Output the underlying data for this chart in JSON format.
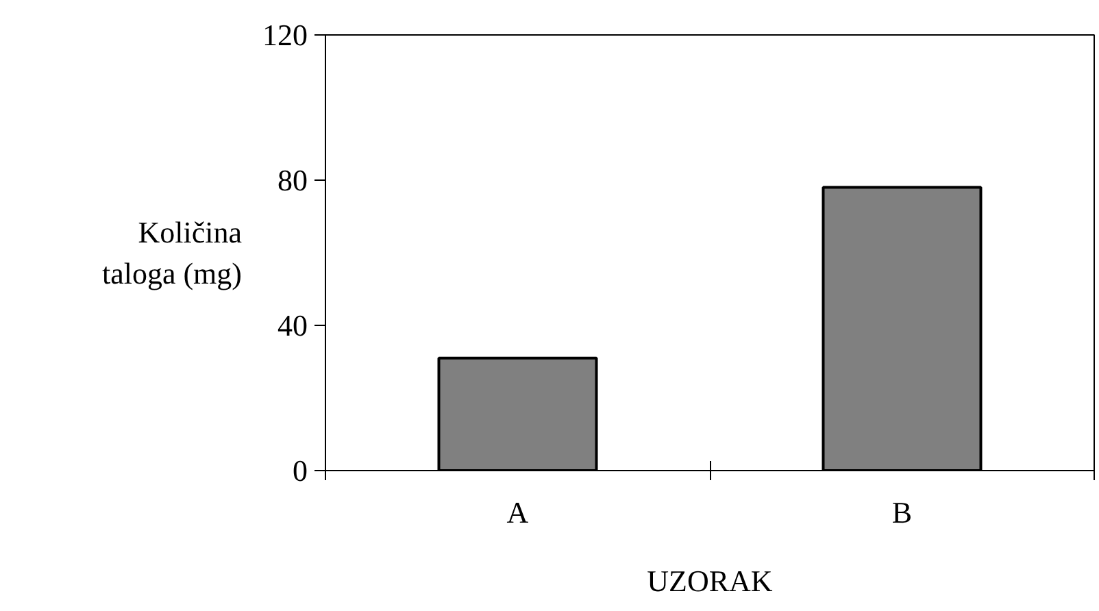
{
  "chart_data": {
    "type": "bar",
    "categories": [
      "A",
      "B"
    ],
    "values": [
      31,
      78
    ],
    "color": "#808080",
    "xlabel": "UZORAK",
    "ylabel": "Količina\ntaloga (mg)",
    "ylim": [
      0,
      120
    ],
    "yticks": [
      0,
      40,
      80,
      120
    ],
    "grid": false
  }
}
